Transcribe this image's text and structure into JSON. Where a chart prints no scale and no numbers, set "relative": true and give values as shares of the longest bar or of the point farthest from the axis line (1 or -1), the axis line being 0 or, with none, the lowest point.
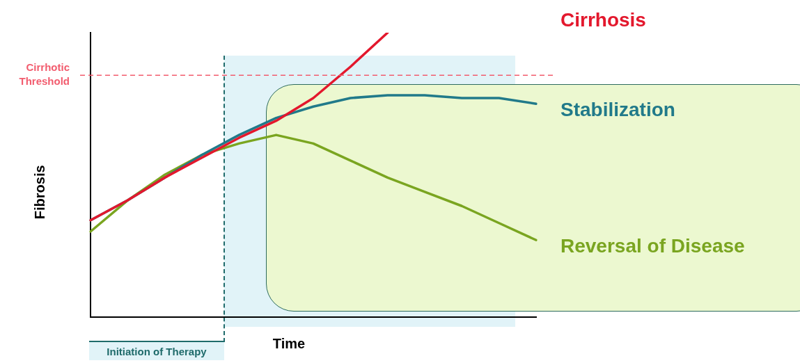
{
  "chart_data": {
    "type": "line",
    "relative": true,
    "xlabel": "Time",
    "ylabel": "Fibrosis",
    "legend": false,
    "categories": [
      null,
      null,
      null,
      null,
      null,
      null,
      null,
      null,
      null,
      null,
      null,
      null,
      null
    ],
    "series": [
      {
        "name": "Cirrhosis",
        "color": "#e3182d",
        "values": [
          0.34,
          0.41,
          0.49,
          0.56,
          0.63,
          0.69,
          0.77,
          0.88,
          1.0,
          null,
          null,
          null,
          null
        ]
      },
      {
        "name": "Stabilization",
        "color": "#217a8a",
        "values": [
          0.34,
          0.41,
          0.49,
          0.57,
          0.64,
          0.7,
          0.74,
          0.77,
          0.78,
          0.78,
          0.77,
          0.77,
          0.75
        ]
      },
      {
        "name": "Reversal of Disease",
        "color": "#7aa520",
        "values": [
          0.3,
          0.41,
          0.5,
          0.57,
          0.61,
          0.64,
          0.61,
          0.55,
          0.49,
          0.44,
          0.39,
          0.33,
          0.27
        ]
      }
    ],
    "ref_lines": [
      {
        "axis": "y",
        "value": 0.85,
        "label": "Cirrhotic Threshold",
        "color": "#f25c6e",
        "line_style": "dashed"
      }
    ],
    "annotations": [
      "Initiation of Therapy"
    ]
  }
}
